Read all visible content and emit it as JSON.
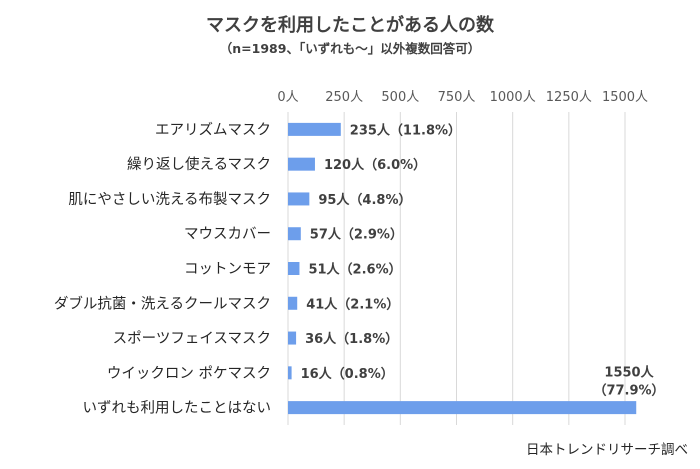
{
  "chart_data": {
    "type": "bar",
    "orientation": "horizontal",
    "title": "マスクを利用したことがある人の数",
    "subtitle": "（n=1989、「いずれも～」以外複数回答可）",
    "categories": [
      "エアリズムマスク",
      "繰り返し使えるマスク",
      "肌にやさしい洗える布製マスク",
      "マウスカバー",
      "コットンモア",
      "ダブル抗菌・洗えるクールマスク",
      "スポーツフェイスマスク",
      "ウイックロン ポケマスク",
      "いずれも利用したことはない"
    ],
    "values": [
      235,
      120,
      95,
      57,
      51,
      41,
      36,
      16,
      1550
    ],
    "data_labels": [
      "235人（11.8%）",
      "120人（6.0%）",
      "95人（4.8%）",
      "57人（2.9%）",
      "51人（2.6%）",
      "41人（2.1%）",
      "36人（1.8%）",
      "16人（0.8%）",
      "1550人（77.9%）"
    ],
    "last_label_lines": [
      "1550人",
      "（77.9%）"
    ],
    "xlim": [
      0,
      1500
    ],
    "xticks": [
      0,
      250,
      500,
      750,
      1000,
      1250,
      1500
    ],
    "xtick_labels": [
      "0人",
      "250人",
      "500人",
      "750人",
      "1000人",
      "1250人",
      "1500人"
    ],
    "axis_position": "top",
    "grid": true,
    "bar_color": "#6d9eeb",
    "source": "日本トレンドリサーチ調べ"
  }
}
